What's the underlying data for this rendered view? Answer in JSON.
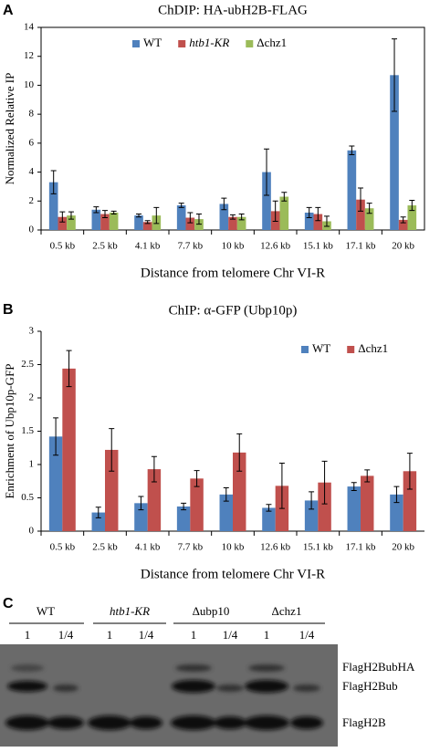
{
  "chart_data": [
    {
      "type": "bar",
      "panel": "A",
      "title": "ChDIP: HA-ubH2B-FLAG",
      "y_label": "Normalized Relative IP",
      "x_label": "Distance from telomere Chr VI-R",
      "categories": [
        "0.5 kb",
        "2.5 kb",
        "4.1 kb",
        "7.7 kb",
        "10 kb",
        "12.6 kb",
        "15.1 kb",
        "17.1 kb",
        "20 kb"
      ],
      "series": [
        {
          "name": "WT",
          "color": "#4f81bd",
          "values": [
            3.3,
            1.4,
            1.0,
            1.7,
            1.8,
            4.0,
            1.2,
            5.5,
            10.7
          ],
          "errors": [
            0.8,
            0.2,
            0.1,
            0.15,
            0.4,
            1.6,
            0.35,
            0.3,
            2.5
          ]
        },
        {
          "name": "htb1-KR",
          "color": "#c0504d",
          "values": [
            0.9,
            1.1,
            0.55,
            0.85,
            0.9,
            1.3,
            1.1,
            2.1,
            0.7
          ],
          "errors": [
            0.35,
            0.25,
            0.1,
            0.35,
            0.15,
            0.7,
            0.45,
            0.8,
            0.2
          ]
        },
        {
          "name": "Δchz1",
          "color": "#9bbb59",
          "values": [
            1.0,
            1.2,
            1.0,
            0.75,
            0.9,
            2.3,
            0.6,
            1.5,
            1.7
          ],
          "errors": [
            0.25,
            0.1,
            0.55,
            0.35,
            0.2,
            0.3,
            0.35,
            0.35,
            0.35
          ]
        }
      ],
      "ylim": [
        0,
        14
      ],
      "yticks": [
        0,
        2,
        4,
        6,
        8,
        10,
        12,
        14
      ],
      "legend": "top",
      "frame": true
    },
    {
      "type": "bar",
      "panel": "B",
      "title": "ChIP: α-GFP (Ubp10p)",
      "y_label": "Enrichment of Ubp10p-GFP",
      "x_label": "Distance from telomere Chr VI-R",
      "categories": [
        "0.5 kb",
        "2.5 kb",
        "4.1 kb",
        "7.7 kb",
        "10 kb",
        "12.6 kb",
        "15.1 kb",
        "17.1 kb",
        "20 kb"
      ],
      "series": [
        {
          "name": "WT",
          "color": "#4f81bd",
          "values": [
            1.42,
            0.28,
            0.42,
            0.37,
            0.55,
            0.35,
            0.46,
            0.67,
            0.55
          ],
          "errors": [
            0.28,
            0.08,
            0.1,
            0.05,
            0.1,
            0.05,
            0.13,
            0.06,
            0.12
          ]
        },
        {
          "name": "Δchz1",
          "color": "#c0504d",
          "values": [
            2.44,
            1.22,
            0.93,
            0.79,
            1.18,
            0.68,
            0.73,
            0.83,
            0.9
          ],
          "errors": [
            0.27,
            0.32,
            0.19,
            0.12,
            0.28,
            0.34,
            0.32,
            0.09,
            0.27
          ]
        }
      ],
      "ylim": [
        0,
        3
      ],
      "yticks": [
        0,
        0.5,
        1,
        1.5,
        2,
        2.5,
        3
      ],
      "legend": "top-right",
      "frame": false
    }
  ],
  "blot": {
    "panel": "C",
    "groups": [
      "WT",
      "htb1-KR",
      "Δubp10",
      "Δchz1"
    ],
    "lanes": [
      "1",
      "1/4",
      "1",
      "1/4",
      "1",
      "1/4",
      "1",
      "1/4"
    ],
    "bands": [
      "FlagH2BubHA",
      "FlagH2Bub",
      "FlagH2B"
    ]
  }
}
